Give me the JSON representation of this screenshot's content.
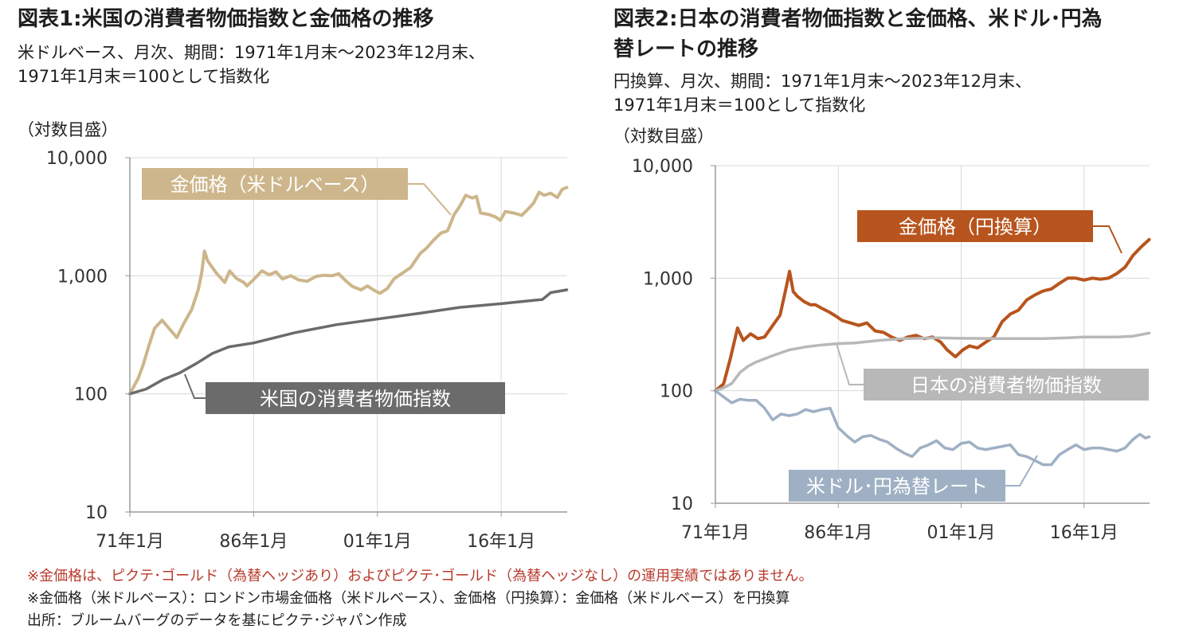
{
  "chart1": {
    "title": "図表1:米国の消費者物価指数と金価格の推移",
    "subtitle_line1": "米ドルベース、月次、期間：1971年1月末～2023年12月末、",
    "subtitle_line2": "1971年1月末＝100として指数化",
    "unit_label": "（対数目盛）"
  },
  "chart2": {
    "title_line1": "図表2:日本の消費者物価指数と金価格、米ドル･円為",
    "title_line2": "替レートの推移",
    "subtitle_line1": "円換算、月次、期間：1971年1月末～2023年12月末、",
    "subtitle_line2": "1971年1月末＝100として指数化",
    "unit_label": "（対数目盛）"
  },
  "notes": {
    "red": "※金価格は、ピクテ･ゴールド（為替ヘッジあり）およびピクテ･ゴールド（為替ヘッジなし）の運用実績ではありません。",
    "line2": "※金価格（米ドルベース）：ロンドン市場金価格（米ドルベース）、金価格（円換算）：金価格（米ドルベース）を円換算",
    "source": "出所：ブルームバーグのデータを基にピクテ･ジャパン作成"
  },
  "colors": {
    "gold_usd": "#cdb68b",
    "us_cpi": "#6b6b6b",
    "gold_jpy": "#b8541d",
    "jp_cpi": "#b8b8b8",
    "usdjpy": "#9fb0c4",
    "grid": "#d9d9d9"
  },
  "chart_data": [
    {
      "type": "line",
      "title": "図表1:米国の消費者物価指数と金価格の推移",
      "yscale": "log",
      "ylim": [
        10,
        10000
      ],
      "yticks": [
        10,
        100,
        1000,
        10000
      ],
      "ytick_labels": [
        "10",
        "100",
        "1,000",
        "10,000"
      ],
      "xlim": [
        1971.0,
        2024.0
      ],
      "xticks": [
        1971,
        1986,
        2001,
        2016
      ],
      "xtick_labels": [
        "71年1月",
        "86年1月",
        "01年1月",
        "16年1月"
      ],
      "series": [
        {
          "name": "金価格（米ドルベース）",
          "color_key": "gold_usd",
          "x": [
            1971.0,
            1972.0,
            1972.6,
            1973.3,
            1974.0,
            1974.9,
            1975.8,
            1976.7,
            1977.5,
            1978.5,
            1979.3,
            1979.7,
            1980.05,
            1980.4,
            1980.9,
            1981.5,
            1982.5,
            1983.1,
            1983.9,
            1984.8,
            1985.2,
            1986.0,
            1987.0,
            1987.9,
            1988.7,
            1989.5,
            1990.5,
            1991.5,
            1992.5,
            1993.6,
            1994.5,
            1995.5,
            1996.3,
            1997.2,
            1998.0,
            1999.0,
            1999.8,
            2000.5,
            2001.3,
            2002.2,
            2003.0,
            2004.0,
            2005.0,
            2006.2,
            2006.9,
            2007.8,
            2008.7,
            2009.5,
            2010.3,
            2011.0,
            2011.7,
            2012.5,
            2013.0,
            2013.5,
            2014.5,
            2015.3,
            2015.9,
            2016.5,
            2017.5,
            2018.5,
            2019.3,
            2019.9,
            2020.6,
            2021.2,
            2022.0,
            2022.8,
            2023.4,
            2023.95
          ],
          "values": [
            100,
            135,
            175,
            255,
            360,
            420,
            355,
            300,
            390,
            520,
            770,
            1050,
            1620,
            1350,
            1200,
            1050,
            880,
            1100,
            950,
            880,
            820,
            930,
            1100,
            1020,
            1080,
            940,
            1000,
            920,
            900,
            990,
            1010,
            1000,
            1040,
            900,
            810,
            760,
            820,
            760,
            710,
            780,
            940,
            1050,
            1170,
            1550,
            1700,
            2000,
            2300,
            2400,
            3300,
            3900,
            4800,
            4550,
            4700,
            3400,
            3300,
            3150,
            2950,
            3500,
            3400,
            3250,
            3700,
            4100,
            5100,
            4800,
            5000,
            4600,
            5400,
            5600
          ]
        },
        {
          "name": "米国の消費者物価指数",
          "color_key": "us_cpi",
          "x": [
            1971.0,
            1973.0,
            1975.0,
            1977.0,
            1979.0,
            1981.0,
            1983.0,
            1986.0,
            1991.0,
            1996.0,
            2001.0,
            2006.0,
            2011.0,
            2016.0,
            2020.0,
            2021.0,
            2022.0,
            2023.95
          ],
          "values": [
            100,
            110,
            132,
            150,
            180,
            220,
            250,
            270,
            330,
            385,
            430,
            480,
            540,
            580,
            620,
            630,
            720,
            760
          ]
        }
      ],
      "annotations": [
        "金価格（米ドルベース）",
        "米国の消費者物価指数"
      ]
    },
    {
      "type": "line",
      "title": "図表2:日本の消費者物価指数と金価格、米ドル･円為替レートの推移",
      "yscale": "log",
      "ylim": [
        10,
        10000
      ],
      "yticks": [
        10,
        100,
        1000,
        10000
      ],
      "ytick_labels": [
        "10",
        "100",
        "1,000",
        "10,000"
      ],
      "xlim": [
        1971.0,
        2024.0
      ],
      "xticks": [
        1971,
        1986,
        2001,
        2016
      ],
      "xtick_labels": [
        "71年1月",
        "86年1月",
        "01年1月",
        "16年1月"
      ],
      "series": [
        {
          "name": "金価格（円換算）",
          "color_key": "gold_jpy",
          "x": [
            1971.0,
            1972.0,
            1972.8,
            1973.7,
            1974.4,
            1975.3,
            1976.2,
            1977.0,
            1978.0,
            1978.9,
            1979.6,
            1980.05,
            1980.5,
            1981.0,
            1981.8,
            1982.6,
            1983.2,
            1984.0,
            1984.9,
            1985.7,
            1986.5,
            1987.5,
            1988.5,
            1989.5,
            1990.5,
            1991.5,
            1992.5,
            1993.5,
            1994.5,
            1995.5,
            1996.5,
            1997.5,
            1998.5,
            1999.3,
            2000.3,
            2001.2,
            2002.0,
            2003.0,
            2004.0,
            2005.0,
            2006.0,
            2007.0,
            2008.0,
            2009.0,
            2010.0,
            2011.0,
            2012.0,
            2013.0,
            2014.0,
            2015.0,
            2016.0,
            2017.0,
            2018.0,
            2019.0,
            2020.0,
            2021.0,
            2022.0,
            2023.0,
            2023.95
          ],
          "values": [
            100,
            115,
            190,
            360,
            280,
            320,
            290,
            300,
            380,
            470,
            800,
            1150,
            760,
            690,
            620,
            580,
            580,
            540,
            500,
            460,
            420,
            400,
            380,
            400,
            340,
            330,
            300,
            280,
            300,
            310,
            290,
            300,
            270,
            230,
            200,
            230,
            250,
            240,
            270,
            300,
            410,
            480,
            520,
            640,
            710,
            770,
            800,
            900,
            1000,
            1000,
            960,
            1000,
            980,
            1000,
            1100,
            1250,
            1600,
            1900,
            2200
          ]
        },
        {
          "name": "日本の消費者物価指数",
          "color_key": "jp_cpi",
          "x": [
            1971.0,
            1972.0,
            1973.0,
            1974.0,
            1975.0,
            1976.0,
            1978.0,
            1980.0,
            1982.0,
            1984.0,
            1986.0,
            1988.0,
            1991.0,
            1994.0,
            1998.0,
            2001.0,
            2006.0,
            2011.0,
            2014.0,
            2016.0,
            2020.0,
            2022.0,
            2023.95
          ],
          "values": [
            100,
            106,
            116,
            145,
            165,
            180,
            205,
            230,
            245,
            255,
            262,
            265,
            280,
            290,
            295,
            292,
            290,
            290,
            295,
            300,
            300,
            305,
            325
          ]
        },
        {
          "name": "米ドル･円為替レート",
          "color_key": "usdjpy",
          "x": [
            1971.0,
            1972.0,
            1973.0,
            1974.0,
            1975.0,
            1976.0,
            1977.0,
            1978.0,
            1979.0,
            1980.0,
            1981.0,
            1982.0,
            1983.0,
            1984.0,
            1985.0,
            1986.0,
            1987.0,
            1988.0,
            1989.0,
            1990.0,
            1991.0,
            1992.0,
            1993.0,
            1994.0,
            1995.0,
            1996.0,
            1997.0,
            1998.0,
            1999.0,
            2000.0,
            2001.0,
            2002.0,
            2003.0,
            2004.0,
            2005.0,
            2006.0,
            2007.0,
            2008.0,
            2009.0,
            2010.0,
            2011.0,
            2012.0,
            2013.0,
            2014.0,
            2015.0,
            2016.0,
            2017.0,
            2018.0,
            2019.0,
            2020.0,
            2021.0,
            2022.0,
            2022.8,
            2023.5,
            2023.95
          ],
          "values": [
            100,
            88,
            78,
            84,
            82,
            82,
            70,
            55,
            62,
            60,
            62,
            68,
            65,
            68,
            70,
            47,
            40,
            35,
            39,
            40,
            37,
            35,
            31,
            28,
            26,
            31,
            33,
            36,
            31,
            30,
            34,
            35,
            31,
            30,
            31,
            32,
            33,
            27,
            26,
            24,
            22,
            22,
            27,
            30,
            33,
            30,
            31,
            31,
            30,
            29,
            31,
            37,
            41,
            38,
            39
          ]
        }
      ],
      "annotations": [
        "金価格（円換算）",
        "日本の消費者物価指数",
        "米ドル･円為替レート"
      ]
    }
  ]
}
